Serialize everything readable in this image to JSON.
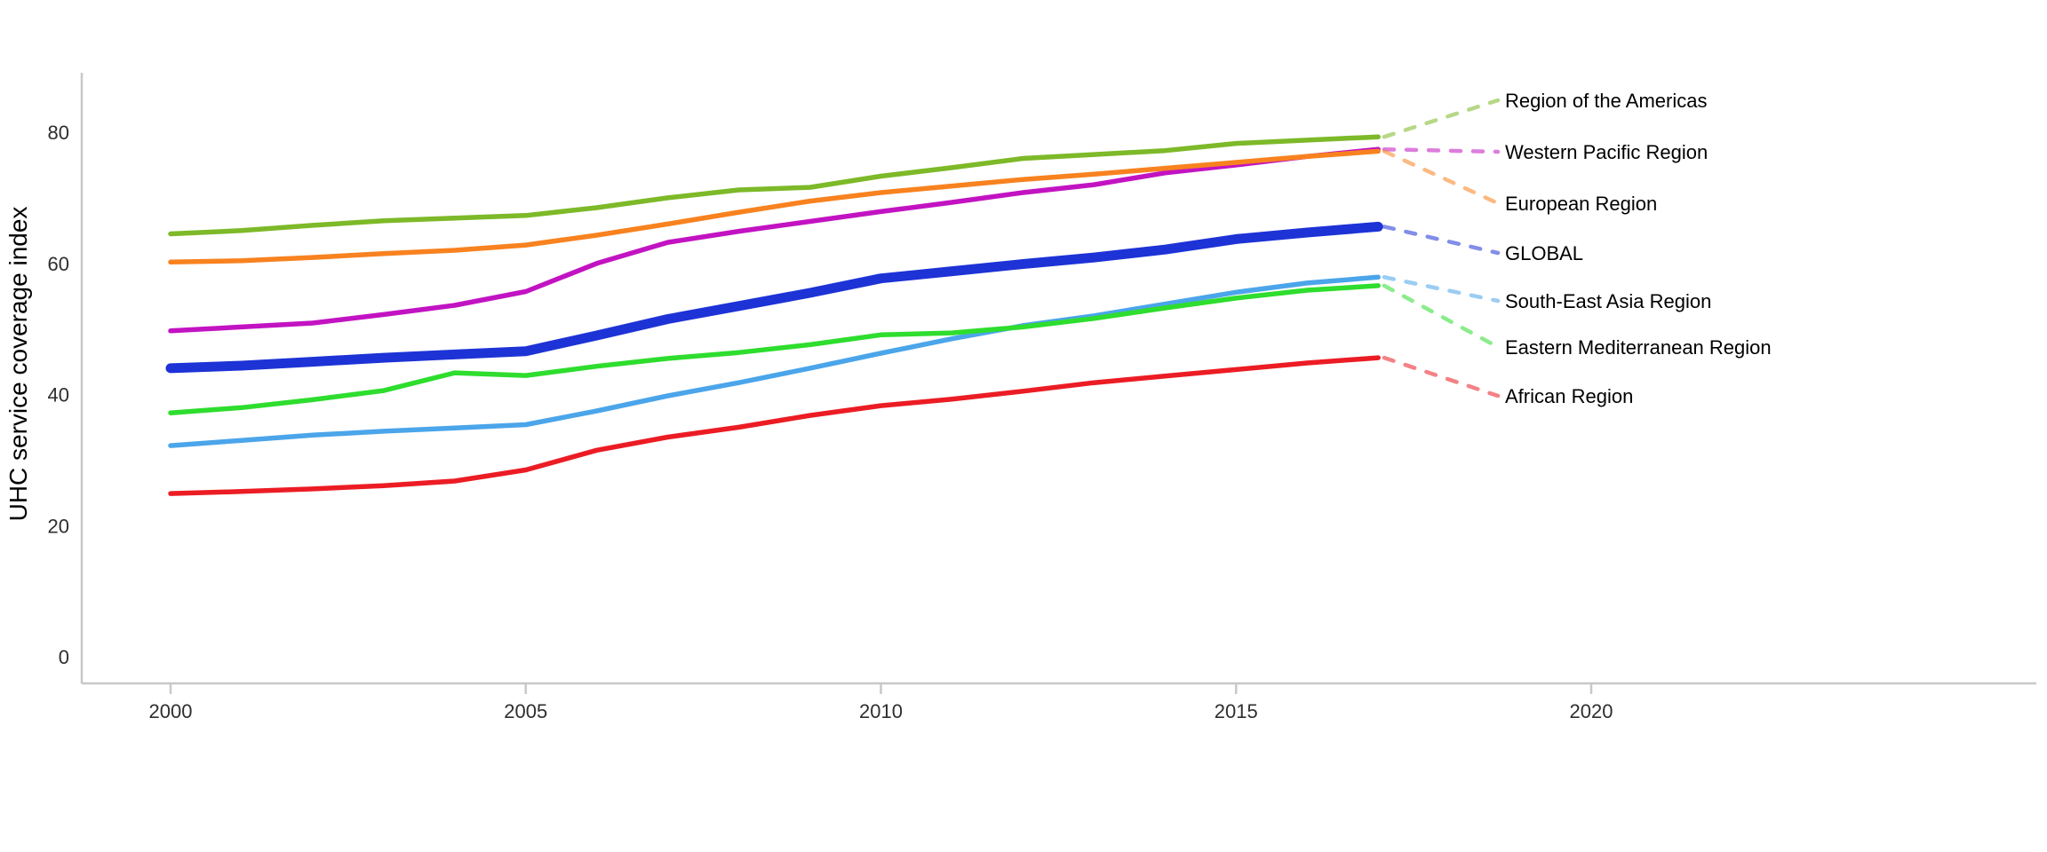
{
  "chart_data": {
    "type": "line",
    "title": "",
    "xlabel": "",
    "ylabel": "UHC service coverage index",
    "x": [
      2000,
      2001,
      2002,
      2003,
      2004,
      2005,
      2006,
      2007,
      2008,
      2009,
      2010,
      2011,
      2012,
      2013,
      2014,
      2015,
      2016,
      2017
    ],
    "x_ticks": [
      "2000",
      "2005",
      "2010",
      "2015",
      "2020"
    ],
    "x_tick_years": [
      2000,
      2005,
      2010,
      2015,
      2020
    ],
    "y_ticks": [
      "0",
      "20",
      "40",
      "60",
      "80"
    ],
    "y_tick_values": [
      0,
      20,
      40,
      60,
      80
    ],
    "xlim": [
      1998.75,
      2026.3
    ],
    "ylim": [
      0,
      89
    ],
    "grid": "off",
    "legend_position": "right-edge-labels-with-dashed-leaders",
    "axis_color": "#c8c8c8",
    "series": [
      {
        "id": "region-of-the-americas",
        "name": "Region of the Americas",
        "color": "#7DB928",
        "emphasis": false,
        "values": [
          64.5,
          65.0,
          65.8,
          66.5,
          66.9,
          67.3,
          68.5,
          70.0,
          71.2,
          71.6,
          73.3,
          74.6,
          76.0,
          76.6,
          77.2,
          78.3,
          78.8,
          79.3
        ]
      },
      {
        "id": "western-pacific-region",
        "name": "Western Pacific Region",
        "color": "#C213C2",
        "emphasis": false,
        "values": [
          49.7,
          50.3,
          50.9,
          52.2,
          53.6,
          55.7,
          60.0,
          63.2,
          64.9,
          66.4,
          67.9,
          69.3,
          70.8,
          72.0,
          73.8,
          75.0,
          76.3,
          77.4
        ]
      },
      {
        "id": "european-region",
        "name": "European Region",
        "color": "#F8821F",
        "emphasis": false,
        "values": [
          60.2,
          60.4,
          60.9,
          61.5,
          62.0,
          62.8,
          64.3,
          66.0,
          67.8,
          69.5,
          70.8,
          71.8,
          72.8,
          73.6,
          74.5,
          75.4,
          76.3,
          77.1
        ]
      },
      {
        "id": "global",
        "name": "GLOBAL",
        "color": "#1D33D6",
        "emphasis": true,
        "values": [
          44.0,
          44.4,
          45.0,
          45.6,
          46.1,
          46.6,
          49.0,
          51.5,
          53.5,
          55.5,
          57.7,
          58.8,
          59.9,
          60.9,
          62.1,
          63.7,
          64.7,
          65.6
        ]
      },
      {
        "id": "south-east-asia-region",
        "name": "South-East Asia Region",
        "color": "#4BA5EA",
        "emphasis": false,
        "values": [
          32.2,
          33.0,
          33.8,
          34.4,
          34.9,
          35.4,
          37.5,
          39.8,
          41.8,
          44.0,
          46.3,
          48.5,
          50.5,
          52.0,
          53.8,
          55.6,
          57.0,
          57.9
        ]
      },
      {
        "id": "eastern-mediterranean-region",
        "name": "Eastern Mediterranean Region",
        "color": "#2EDD2E",
        "emphasis": false,
        "values": [
          37.2,
          38.0,
          39.2,
          40.6,
          43.3,
          42.9,
          44.3,
          45.5,
          46.4,
          47.6,
          49.1,
          49.4,
          50.3,
          51.6,
          53.2,
          54.7,
          55.9,
          56.6
        ]
      },
      {
        "id": "african-region",
        "name": "African Region",
        "color": "#EC1C24",
        "emphasis": false,
        "values": [
          24.9,
          25.2,
          25.6,
          26.1,
          26.8,
          28.5,
          31.5,
          33.5,
          35.0,
          36.8,
          38.3,
          39.3,
          40.5,
          41.8,
          42.8,
          43.8,
          44.8,
          45.6
        ]
      }
    ],
    "legend_order": [
      "region-of-the-americas",
      "western-pacific-region",
      "european-region",
      "global",
      "south-east-asia-region",
      "eastern-mediterranean-region",
      "african-region"
    ]
  }
}
